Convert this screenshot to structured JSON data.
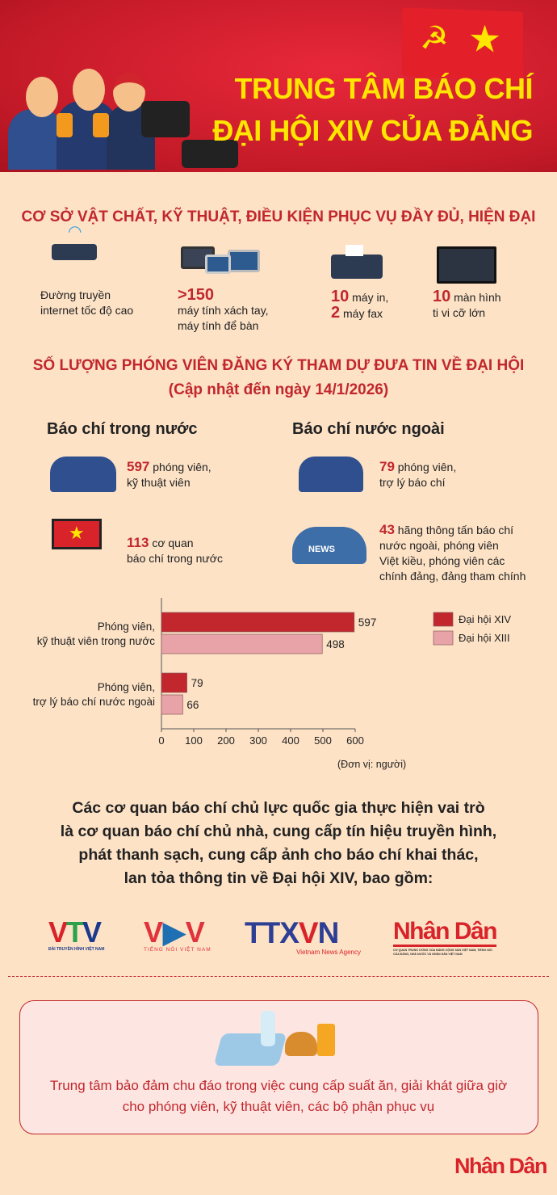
{
  "header": {
    "title_line1": "TRUNG TÂM BÁO CHÍ",
    "title_line2": "ĐẠI HỘI XIV CỦA ĐẢNG"
  },
  "facilities": {
    "heading": "CƠ SỞ VẬT CHẤT, KỸ THUẬT, ĐIỀU KIỆN PHỤC VỤ ĐẦY ĐỦ, HIỆN ĐẠI",
    "items": [
      {
        "icon": "wifi-router-icon",
        "line1": "Đường truyền",
        "line2": "internet tốc độ cao"
      },
      {
        "icon": "computers-icon",
        "number": ">150",
        "line1": "máy tính xách tay,",
        "line2": "máy tính để bàn"
      },
      {
        "icon": "printer-icon",
        "n1": "10",
        "t1": " máy in,",
        "n2": "2",
        "t2": " máy fax"
      },
      {
        "icon": "tv-monitor-icon",
        "n1": "10",
        "t1": " màn hình",
        "line2": "ti vi cỡ lớn"
      }
    ]
  },
  "reporters": {
    "heading": "SỐ LƯỢNG PHÓNG VIÊN ĐĂNG KÝ THAM DỰ ĐƯA TIN VỀ ĐẠI HỘI",
    "subheading": "(Cập nhật đến ngày 14/1/2026)",
    "domestic": {
      "title": "Báo chí trong nước",
      "n1": "597",
      "t1": " phóng viên,",
      "t1b": "kỹ thuật viên",
      "n2": "113",
      "t2": " cơ quan",
      "t2b": "báo chí trong nước"
    },
    "foreign": {
      "title": "Báo chí nước ngoài",
      "n1": "79",
      "t1": " phóng viên,",
      "t1b": "trợ lý báo chí",
      "n2": "43",
      "t2": " hãng thông tấn báo chí",
      "t2b": "nước ngoài, phóng viên",
      "t2c": "Việt kiều, phóng viên các",
      "t2d": "chính đảng, đảng tham chính"
    }
  },
  "chart_data": {
    "type": "bar",
    "orientation": "horizontal",
    "categories": [
      [
        "Phóng viên,",
        "kỹ thuật viên trong nước"
      ],
      [
        "Phóng viên,",
        "trợ lý báo chí nước ngoài"
      ]
    ],
    "series": [
      {
        "name": "Đại hội XIV",
        "values": [
          597,
          79
        ],
        "color": "#c1272d"
      },
      {
        "name": "Đại hội XIII",
        "values": [
          498,
          66
        ],
        "color": "#e8a3a8"
      }
    ],
    "xlim": [
      0,
      600
    ],
    "xticks": [
      "0",
      "100",
      "200",
      "300",
      "400",
      "500",
      "600"
    ],
    "unit_note": "(Đơn vị: người)",
    "legend": "right",
    "grid": false
  },
  "media": {
    "paragraph": [
      "Các cơ quan báo chí chủ lực quốc gia thực hiện vai trò",
      "là cơ quan báo chí chủ nhà, cung cấp tín hiệu truyền hình,",
      "phát thanh sạch, cung cấp ảnh cho báo chí khai thác,",
      "lan tỏa thông tin về Đại hội XIV, bao gồm:"
    ],
    "logos": [
      {
        "name": "VTV",
        "tagline": "ĐÀI TRUYỀN HÌNH VIỆT NAM"
      },
      {
        "name": "VOV",
        "tagline": "TIẾNG NÓI VIỆT NAM"
      },
      {
        "name": "TTXVN",
        "tagline": "Vietnam News Agency"
      },
      {
        "name": "Nhân Dân",
        "tagline": "CƠ QUAN TRUNG ƯƠNG CỦA ĐẢNG CỘNG SẢN VIỆT NAM, TIẾNG NÓI CỦA ĐẢNG, NHÀ NƯỚC VÀ NHÂN DÂN VIỆT NAM"
      }
    ]
  },
  "food": {
    "line1": "Trung tâm bảo đảm chu đáo trong việc cung cấp suất ăn, giải khát giữa giờ",
    "line2": "cho phóng viên, kỹ thuật viên, các bộ phận phục vụ"
  },
  "footer": {
    "logo": "Nhân Dân"
  },
  "colors": {
    "accent": "#c1272d",
    "title_yellow": "#ffe600",
    "background": "#fde2c6"
  }
}
